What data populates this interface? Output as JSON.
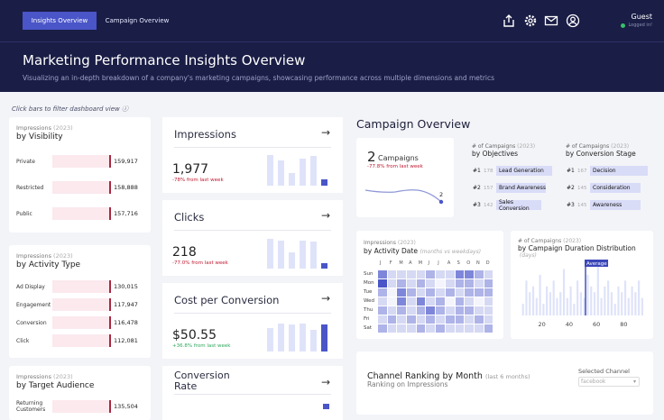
{
  "header": {
    "tabs": [
      "Insights Overview",
      "Campaign Overview"
    ],
    "user": "Guest",
    "status": "Logged in!",
    "title": "Marketing Performance Insights Overview",
    "subtitle": "Visualizing an in-depth breakdown of a company's marketing campaigns, showcasing performance across multiple dimensions and metrics"
  },
  "hint": "Click bars to filter dashboard view ⓘ",
  "visibility": {
    "label": "Impressions",
    "year": "(2023)",
    "title": "by Visibility",
    "rows": [
      {
        "name": "Private",
        "value": "159,917"
      },
      {
        "name": "Restricted",
        "value": "158,888"
      },
      {
        "name": "Public",
        "value": "157,716"
      }
    ]
  },
  "activity": {
    "label": "Impressions",
    "year": "(2023)",
    "title": "by Activity Type",
    "rows": [
      {
        "name": "Ad Display",
        "value": "130,015"
      },
      {
        "name": "Engagement",
        "value": "117,947"
      },
      {
        "name": "Conversion",
        "value": "116,478"
      },
      {
        "name": "Click",
        "value": "112,081"
      }
    ]
  },
  "audience": {
    "label": "Impressions",
    "year": "(2023)",
    "title": "by Target Audience",
    "rows": [
      {
        "name": "Returning Customers",
        "value": "135,504"
      }
    ]
  },
  "kpis": [
    {
      "name": "Impressions",
      "arrow": "→",
      "value": "1,977",
      "change": "-78% from last week",
      "neg": true
    },
    {
      "name": "Clicks",
      "arrow": "→",
      "value": "218",
      "change": "-77.0% from last week",
      "neg": true
    },
    {
      "name": "Cost per Conversion",
      "arrow": "→",
      "value": "$50.55",
      "change": "+36.8% from last week",
      "neg": false
    },
    {
      "name": "Conversion Rate",
      "arrow": "→"
    }
  ],
  "campaign": {
    "title": "Campaign Overview",
    "count": "2",
    "count_label": "Campaigns",
    "change": "-77.8% from last week",
    "spark_end": "2"
  },
  "objectives": {
    "label": "# of Campaigns",
    "year": "(2023)",
    "title": "by Objectives",
    "rows": [
      {
        "rank": "#1",
        "count": "178",
        "name": "Lead Generation"
      },
      {
        "rank": "#2",
        "count": "157",
        "name": "Brand Awareness"
      },
      {
        "rank": "#3",
        "count": "142",
        "name": "Sales Conversion"
      }
    ]
  },
  "stages": {
    "label": "# of Campaigns",
    "year": "(2023)",
    "title": "by Conversion Stage",
    "rows": [
      {
        "rank": "#1",
        "count": "167",
        "name": "Decision"
      },
      {
        "rank": "#2",
        "count": "145",
        "name": "Consideration"
      },
      {
        "rank": "#3",
        "count": "145",
        "name": "Awareness"
      }
    ]
  },
  "heatmap": {
    "label": "Impressions",
    "year": "(2023)",
    "title": "by Activity Date",
    "note": "(months vs weekdays)",
    "months": [
      "J",
      "F",
      "M",
      "A",
      "M",
      "J",
      "J",
      "A",
      "S",
      "O",
      "N",
      "D"
    ],
    "days": [
      "Sun",
      "Mon",
      "Tue",
      "Wed",
      "Thu",
      "Fri",
      "Sat"
    ]
  },
  "duration": {
    "label": "# of Campaigns",
    "year": "(2023)",
    "title": "by Campaign Duration Distribution",
    "unit": "(days)",
    "avg_label": "Average",
    "ticks": [
      "20",
      "40",
      "60",
      "80"
    ]
  },
  "ranking": {
    "title": "Channel Ranking by Month",
    "note": "(last 6 months)",
    "sub": "Ranking on Impressions",
    "select_label": "Selected Channel",
    "select_value": "facebook"
  },
  "chart_data": [
    {
      "type": "heatmap",
      "title": "Impressions by Activity Date",
      "x": [
        "J",
        "F",
        "M",
        "A",
        "M",
        "J",
        "J",
        "A",
        "S",
        "O",
        "N",
        "D"
      ],
      "y": [
        "Sun",
        "Mon",
        "Tue",
        "Wed",
        "Thu",
        "Fri",
        "Sat"
      ],
      "values": [
        [
          4,
          2,
          2,
          2,
          2,
          3,
          2,
          2,
          4,
          4,
          3,
          2
        ],
        [
          5,
          2,
          3,
          2,
          3,
          2,
          1,
          2,
          3,
          3,
          2,
          3
        ],
        [
          3,
          1,
          4,
          3,
          2,
          3,
          2,
          3,
          2,
          3,
          3,
          3
        ],
        [
          2,
          1,
          4,
          2,
          4,
          2,
          3,
          1,
          3,
          2,
          1,
          2
        ],
        [
          3,
          2,
          3,
          2,
          3,
          4,
          3,
          2,
          3,
          3,
          2,
          2
        ],
        [
          2,
          3,
          2,
          3,
          2,
          3,
          2,
          3,
          3,
          2,
          3,
          2
        ],
        [
          3,
          2,
          2,
          2,
          3,
          2,
          3,
          2,
          2,
          2,
          2,
          3
        ]
      ]
    },
    {
      "type": "bar",
      "title": "# of Campaigns by Campaign Duration Distribution",
      "xlabel": "days",
      "values": [
        2,
        6,
        4,
        5,
        3,
        7,
        2,
        5,
        4,
        6,
        3,
        4,
        8,
        3,
        5,
        2,
        6,
        4,
        3,
        7,
        5,
        4,
        9,
        3,
        5,
        6,
        4,
        2,
        5,
        4,
        6,
        3,
        5,
        4,
        6,
        3
      ],
      "xlim": [
        5,
        95
      ],
      "ticks": [
        20,
        40,
        60,
        80
      ],
      "average": 52
    }
  ]
}
